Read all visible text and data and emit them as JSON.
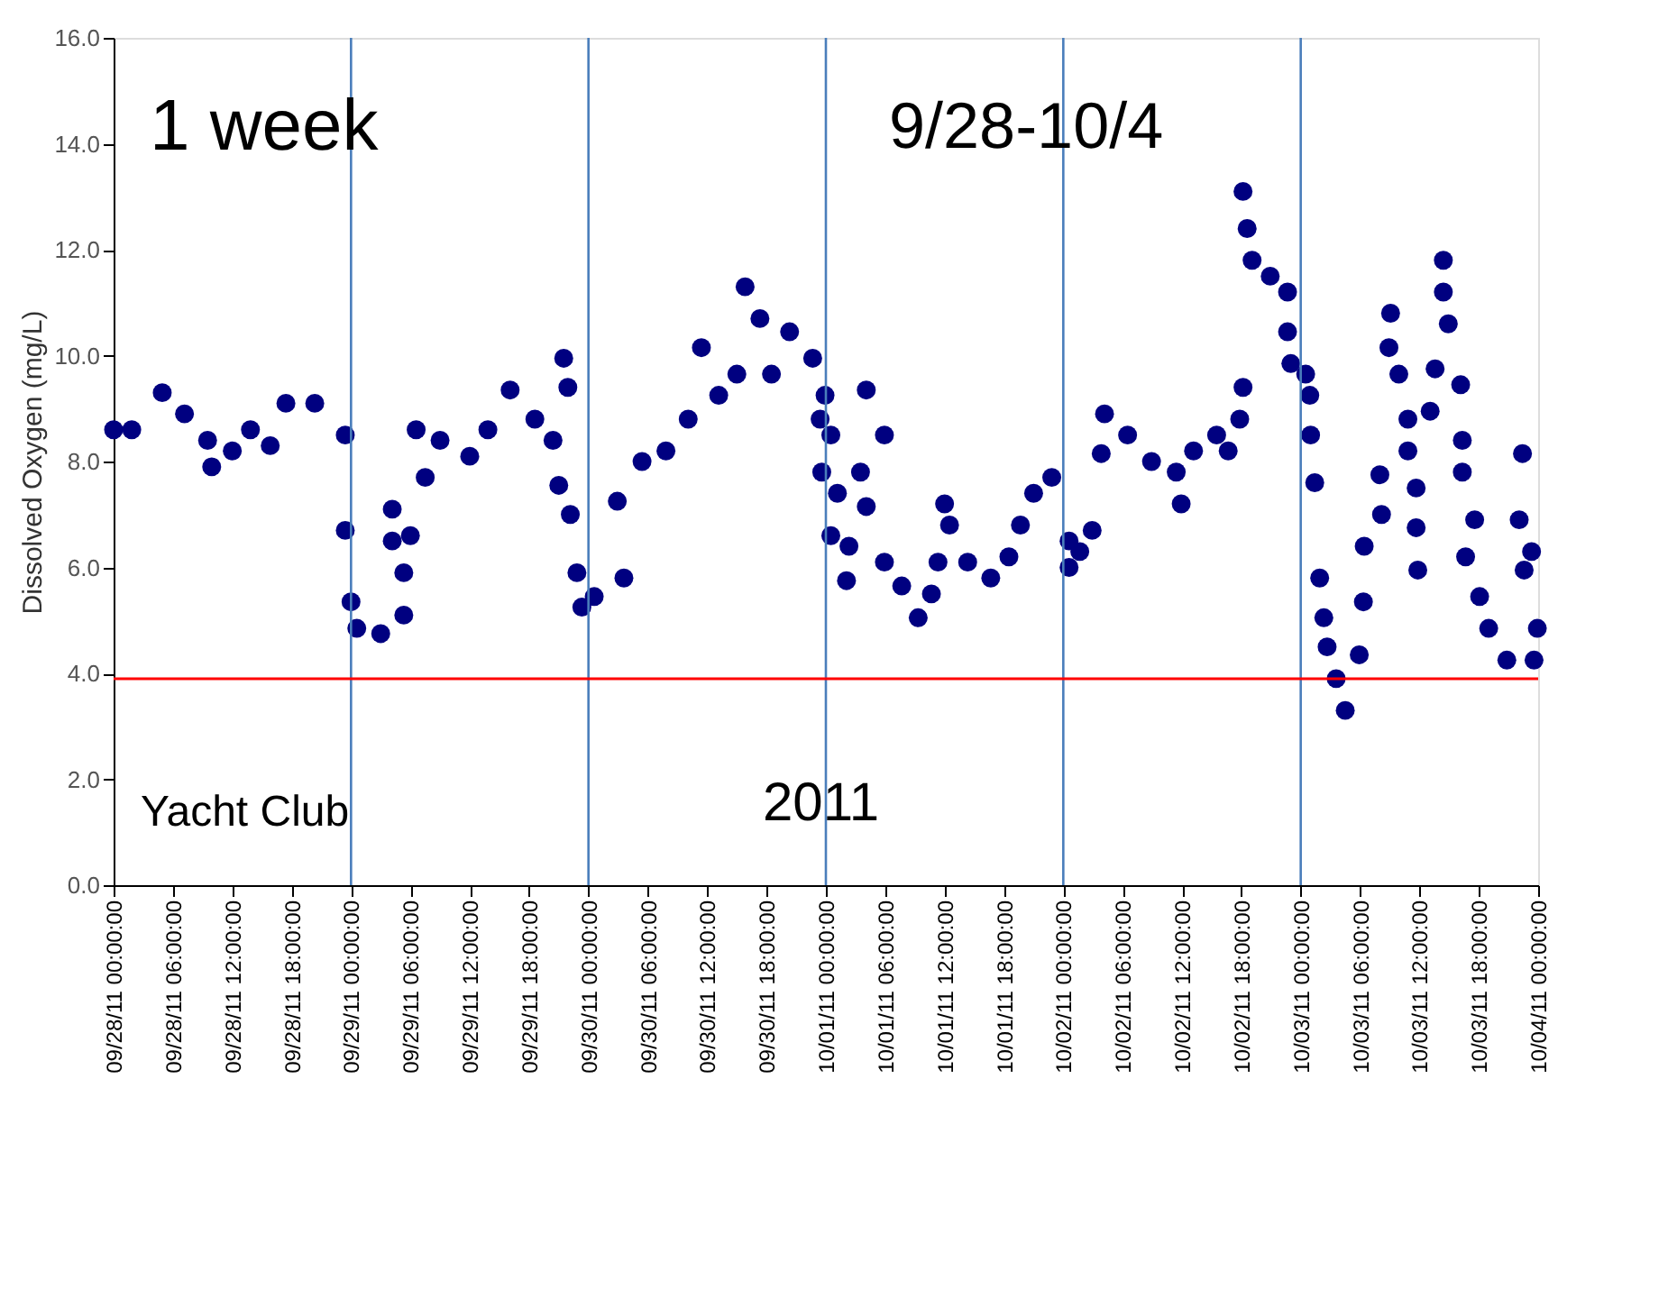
{
  "chart_data": {
    "type": "scatter",
    "ylabel": "Dissolved Oxygen (mg/L)",
    "marker": "circle",
    "grid": false,
    "annotations": [
      "1 week",
      "9/28-10/4",
      "Yacht Club",
      "2011"
    ],
    "xlim": [
      "2011-09-28T00:00",
      "2011-10-04T00:00"
    ],
    "xticks": [
      {
        "value": "2011-09-28T00:00",
        "label": "09/28/11 00:00:00"
      },
      {
        "value": "2011-09-28T06:00",
        "label": "09/28/11 06:00:00"
      },
      {
        "value": "2011-09-28T12:00",
        "label": "09/28/11 12:00:00"
      },
      {
        "value": "2011-09-28T18:00",
        "label": "09/28/11 18:00:00"
      },
      {
        "value": "2011-09-29T00:00",
        "label": "09/29/11 00:00:00"
      },
      {
        "value": "2011-09-29T06:00",
        "label": "09/29/11 06:00:00"
      },
      {
        "value": "2011-09-29T12:00",
        "label": "09/29/11 12:00:00"
      },
      {
        "value": "2011-09-29T18:00",
        "label": "09/29/11 18:00:00"
      },
      {
        "value": "2011-09-30T00:00",
        "label": "09/30/11 00:00:00"
      },
      {
        "value": "2011-09-30T06:00",
        "label": "09/30/11 06:00:00"
      },
      {
        "value": "2011-09-30T12:00",
        "label": "09/30/11 12:00:00"
      },
      {
        "value": "2011-09-30T18:00",
        "label": "09/30/11 18:00:00"
      },
      {
        "value": "2011-10-01T00:00",
        "label": "10/01/11 00:00:00"
      },
      {
        "value": "2011-10-01T06:00",
        "label": "10/01/11 06:00:00"
      },
      {
        "value": "2011-10-01T12:00",
        "label": "10/01/11 12:00:00"
      },
      {
        "value": "2011-10-01T18:00",
        "label": "10/01/11 18:00:00"
      },
      {
        "value": "2011-10-02T00:00",
        "label": "10/02/11 00:00:00"
      },
      {
        "value": "2011-10-02T06:00",
        "label": "10/02/11 06:00:00"
      },
      {
        "value": "2011-10-02T12:00",
        "label": "10/02/11 12:00:00"
      },
      {
        "value": "2011-10-02T18:00",
        "label": "10/02/11 18:00:00"
      },
      {
        "value": "2011-10-03T00:00",
        "label": "10/03/11 00:00:00"
      },
      {
        "value": "2011-10-03T06:00",
        "label": "10/03/11 06:00:00"
      },
      {
        "value": "2011-10-03T12:00",
        "label": "10/03/11 12:00:00"
      },
      {
        "value": "2011-10-03T18:00",
        "label": "10/03/11 18:00:00"
      },
      {
        "value": "2011-10-04T00:00",
        "label": "10/04/11 00:00:00"
      }
    ],
    "ylim": [
      0,
      16
    ],
    "yticks": [
      {
        "value": 0,
        "label": "0.0"
      },
      {
        "value": 2,
        "label": "2.0"
      },
      {
        "value": 4,
        "label": "4.0"
      },
      {
        "value": 6,
        "label": "6.0"
      },
      {
        "value": 8,
        "label": "8.0"
      },
      {
        "value": 10,
        "label": "10.0"
      },
      {
        "value": 12,
        "label": "12.0"
      },
      {
        "value": 14,
        "label": "14.0"
      },
      {
        "value": 16,
        "label": "16.0"
      }
    ],
    "ref_lines": [
      {
        "axis": "x",
        "value": "2011-09-29T00:00",
        "color": "#4a7ebb"
      },
      {
        "axis": "x",
        "value": "2011-09-30T00:00",
        "color": "#4a7ebb"
      },
      {
        "axis": "x",
        "value": "2011-10-01T00:00",
        "color": "#4a7ebb"
      },
      {
        "axis": "x",
        "value": "2011-10-02T00:00",
        "color": "#4a7ebb"
      },
      {
        "axis": "x",
        "value": "2011-10-03T00:00",
        "color": "#4a7ebb"
      },
      {
        "axis": "y",
        "value": 3.9,
        "color": "#ff0000"
      }
    ],
    "series": [
      {
        "color": "#000080",
        "x": [
          "2011-09-28T00:00",
          "2011-09-28T01:50",
          "2011-09-28T04:55",
          "2011-09-28T07:10",
          "2011-09-28T09:30",
          "2011-09-28T09:55",
          "2011-09-28T12:00",
          "2011-09-28T13:50",
          "2011-09-28T15:50",
          "2011-09-28T17:25",
          "2011-09-28T20:20",
          "2011-09-28T23:25",
          "2011-09-28T23:25",
          "2011-09-29T00:00",
          "2011-09-29T00:35",
          "2011-09-29T03:00",
          "2011-09-29T05:20",
          "2011-09-29T05:20",
          "2011-09-29T04:10",
          "2011-09-29T04:10",
          "2011-09-29T06:00",
          "2011-09-29T06:35",
          "2011-09-29T07:30",
          "2011-09-29T09:00",
          "2011-09-29T12:00",
          "2011-09-29T13:50",
          "2011-09-29T16:05",
          "2011-09-29T18:35",
          "2011-09-29T20:25",
          "2011-09-29T21:30",
          "2011-09-29T21:55",
          "2011-09-29T21:00",
          "2011-09-29T22:10",
          "2011-09-29T22:50",
          "2011-09-29T23:20",
          "2011-09-30T00:35",
          "2011-09-30T03:35",
          "2011-09-30T02:55",
          "2011-09-30T05:25",
          "2011-09-30T07:50",
          "2011-09-30T10:05",
          "2011-09-30T11:25",
          "2011-09-30T13:10",
          "2011-09-30T15:00",
          "2011-09-30T15:50",
          "2011-09-30T17:20",
          "2011-09-30T18:30",
          "2011-09-30T20:20",
          "2011-09-30T22:40",
          "2011-09-30T23:55",
          "2011-09-30T23:25",
          "2011-10-01T00:30",
          "2011-09-30T23:35",
          "2011-10-01T01:10",
          "2011-10-01T00:30",
          "2011-10-01T02:20",
          "2011-10-01T02:05",
          "2011-10-01T04:05",
          "2011-10-01T05:55",
          "2011-10-01T03:30",
          "2011-10-01T04:05",
          "2011-10-01T05:55",
          "2011-10-01T07:40",
          "2011-10-01T09:20",
          "2011-10-01T10:40",
          "2011-10-01T12:00",
          "2011-10-01T12:30",
          "2011-10-01T11:20",
          "2011-10-01T14:20",
          "2011-10-01T16:40",
          "2011-10-01T18:30",
          "2011-10-01T19:40",
          "2011-10-01T21:00",
          "2011-10-01T22:50",
          "2011-10-02T00:35",
          "2011-10-02T00:35",
          "2011-10-02T01:40",
          "2011-10-02T02:55",
          "2011-10-02T04:10",
          "2011-10-02T03:50",
          "2011-10-02T06:30",
          "2011-10-02T08:55",
          "2011-10-02T11:25",
          "2011-10-02T11:55",
          "2011-10-02T13:10",
          "2011-10-02T15:30",
          "2011-10-02T16:40",
          "2011-10-02T17:50",
          "2011-10-02T18:10",
          "2011-10-02T18:10",
          "2011-10-02T18:35",
          "2011-10-02T19:05",
          "2011-10-02T20:55",
          "2011-10-02T22:40",
          "2011-10-02T22:40",
          "2011-10-02T23:00",
          "2011-10-03T00:30",
          "2011-10-03T00:55",
          "2011-10-03T01:00",
          "2011-10-03T01:25",
          "2011-10-03T01:55",
          "2011-10-03T02:20",
          "2011-10-03T02:40",
          "2011-10-03T03:35",
          "2011-10-03T04:30",
          "2011-10-03T05:55",
          "2011-10-03T06:20",
          "2011-10-03T06:25",
          "2011-10-03T08:00",
          "2011-10-03T08:10",
          "2011-10-03T08:55",
          "2011-10-03T09:05",
          "2011-10-03T09:55",
          "2011-10-03T10:50",
          "2011-10-03T10:50",
          "2011-10-03T11:40",
          "2011-10-03T11:40",
          "2011-10-03T11:50",
          "2011-10-03T13:05",
          "2011-10-03T13:35",
          "2011-10-03T14:25",
          "2011-10-03T14:25",
          "2011-10-03T14:55",
          "2011-10-03T16:10",
          "2011-10-03T16:20",
          "2011-10-03T16:20",
          "2011-10-03T17:35",
          "2011-10-03T16:40",
          "2011-10-03T18:05",
          "2011-10-03T19:00",
          "2011-10-03T20:50",
          "2011-10-03T22:25",
          "2011-10-03T22:05",
          "2011-10-03T22:35",
          "2011-10-03T23:20",
          "2011-10-03T23:55",
          "2011-10-03T23:35"
        ],
        "values": [
          8.6,
          8.6,
          9.3,
          8.9,
          8.4,
          7.9,
          8.2,
          8.6,
          8.3,
          9.1,
          9.1,
          8.5,
          6.7,
          5.35,
          4.85,
          4.75,
          5.1,
          5.9,
          6.5,
          7.1,
          6.6,
          8.6,
          7.7,
          8.4,
          8.1,
          8.6,
          9.35,
          8.8,
          8.4,
          9.95,
          9.4,
          7.55,
          7.0,
          5.9,
          5.25,
          5.45,
          5.8,
          7.25,
          8.0,
          8.2,
          8.8,
          10.15,
          9.25,
          9.65,
          11.3,
          10.7,
          9.65,
          10.45,
          9.95,
          9.25,
          8.8,
          8.5,
          7.8,
          7.4,
          6.6,
          6.4,
          5.75,
          9.35,
          8.5,
          7.8,
          7.15,
          6.1,
          5.65,
          5.05,
          5.5,
          7.2,
          6.8,
          6.1,
          6.1,
          5.8,
          6.2,
          6.8,
          7.4,
          7.7,
          6.5,
          6.0,
          6.3,
          6.7,
          8.9,
          8.15,
          8.5,
          8.0,
          7.8,
          7.2,
          8.2,
          8.5,
          8.2,
          8.8,
          9.4,
          13.1,
          12.4,
          11.8,
          11.5,
          11.2,
          10.45,
          9.85,
          9.65,
          9.25,
          8.5,
          7.6,
          5.8,
          5.05,
          4.5,
          3.9,
          3.3,
          4.35,
          5.35,
          6.4,
          7.75,
          7.0,
          10.15,
          10.8,
          9.65,
          8.8,
          8.2,
          7.5,
          6.75,
          5.95,
          8.95,
          9.75,
          11.8,
          11.2,
          10.6,
          9.45,
          8.4,
          7.8,
          6.9,
          6.2,
          5.45,
          4.85,
          4.25,
          8.15,
          6.9,
          5.95,
          6.3,
          4.85,
          4.25
        ]
      }
    ]
  }
}
